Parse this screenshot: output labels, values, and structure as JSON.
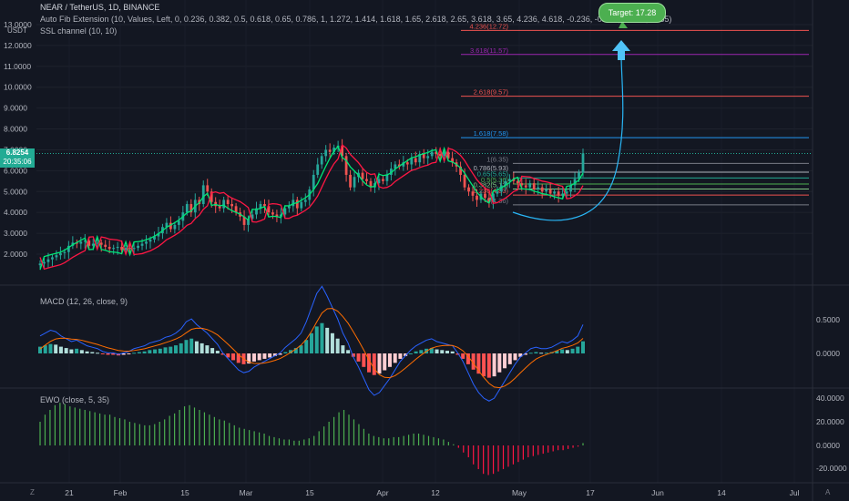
{
  "header": {
    "symbol_line": "NEAR / TetherUS, 1D, BINANCE",
    "fib_line": "Auto Fib Extension (10, Values, Left, 0, 0.236, 0.382, 0.5, 0.618, 0.65, 0.786, 1, 1.272, 1.414, 1.618, 1.65, 2.618, 2.65, 3.618, 3.65, 4.236, 4.618, -0.236, -0.382, -0.618, -0.65)",
    "ssl_line": "SSL channel (10, 10)",
    "currency": "USDT"
  },
  "price_tag": {
    "price": "6.8254",
    "countdown": "20:35:06"
  },
  "target": {
    "label": "Target: 17.28"
  },
  "macd": {
    "label": "MACD (12, 26, close, 9)",
    "ticks": [
      "0.5000",
      "0.0000"
    ]
  },
  "ewo": {
    "label": "EWO (close, 5, 35)",
    "ticks": [
      "40.0000",
      "20.0000",
      "0.0000",
      "-20.0000"
    ]
  },
  "corner_left": "Z",
  "corner_right": "A",
  "colors": {
    "bg": "#131722",
    "up": "#26a69a",
    "down": "#ef5350",
    "ssl_up": "#00e676",
    "ssl_down": "#ff1744",
    "target": "#4caf50"
  },
  "chart_data": {
    "type": "candlestick",
    "y_ticks": [
      "13.0000",
      "12.0000",
      "11.0000",
      "10.0000",
      "9.0000",
      "8.0000",
      "7.0000",
      "6.0000",
      "5.0000",
      "4.0000",
      "3.0000",
      "2.0000"
    ],
    "x_ticks": [
      "21",
      "Feb",
      "15",
      "Mar",
      "15",
      "Apr",
      "12",
      "May",
      "17",
      "Jun",
      "14",
      "Jul"
    ],
    "ylim": [
      1.2,
      13.6
    ],
    "fib_levels": [
      {
        "label": "4.236(12.72)",
        "value": 12.72,
        "color": "#ef5350"
      },
      {
        "label": "3.618(11.57)",
        "value": 11.57,
        "color": "#9c27b0"
      },
      {
        "label": "2.618(9.57)",
        "value": 9.57,
        "color": "#ef5350"
      },
      {
        "label": "1.618(7.58)",
        "value": 7.58,
        "color": "#2196f3"
      },
      {
        "label": "1(6.35)",
        "value": 6.35,
        "color": "#787b86"
      },
      {
        "label": "0.786(5.93)",
        "value": 5.93,
        "color": "#b2b5be"
      },
      {
        "label": "0.65(5.65)",
        "value": 5.65,
        "color": "#22ab94"
      },
      {
        "label": "0.5(5.36)",
        "value": 5.36,
        "color": "#4caf50"
      },
      {
        "label": "0.382(5.12)",
        "value": 5.12,
        "color": "#81c784"
      },
      {
        "label": "0.236(4.83)",
        "value": 4.83,
        "color": "#ef5350"
      },
      {
        "label": "0(4.36)",
        "value": 4.36,
        "color": "#787b86"
      }
    ],
    "close": [
      1.55,
      1.62,
      1.75,
      1.85,
      1.95,
      2.05,
      2.1,
      2.4,
      2.55,
      2.5,
      2.6,
      2.65,
      2.4,
      2.5,
      2.55,
      2.45,
      2.35,
      2.25,
      2.3,
      2.35,
      2.2,
      2.3,
      2.25,
      2.3,
      2.4,
      2.5,
      2.6,
      2.7,
      2.85,
      3.0,
      3.3,
      3.5,
      3.2,
      3.4,
      3.6,
      4.0,
      4.4,
      4.0,
      4.6,
      4.4,
      5.3,
      5.0,
      4.5,
      4.3,
      4.2,
      4.6,
      4.4,
      4.3,
      4.0,
      3.8,
      3.4,
      3.7,
      3.9,
      4.2,
      4.4,
      4.3,
      4.0,
      3.9,
      3.8,
      3.9,
      4.2,
      4.3,
      4.6,
      4.2,
      4.5,
      4.6,
      5.1,
      5.8,
      6.3,
      6.7,
      7.0,
      6.9,
      7.1,
      7.2,
      6.7,
      5.8,
      5.2,
      5.7,
      5.9,
      5.6,
      5.5,
      5.2,
      5.4,
      5.6,
      5.5,
      5.8,
      6.1,
      6.3,
      6.2,
      6.4,
      6.3,
      6.6,
      6.4,
      6.8,
      6.6,
      6.7,
      6.9,
      6.8,
      6.7,
      6.9,
      6.6,
      6.4,
      6.2,
      5.8,
      5.2,
      5.0,
      4.8,
      4.6,
      4.9,
      4.7,
      4.5,
      4.9,
      5.0,
      5.3,
      5.5,
      5.6,
      5.5,
      5.4,
      5.3,
      5.2,
      5.4,
      5.1,
      5.2,
      5.0,
      5.1,
      4.9,
      5.0,
      4.8,
      4.9,
      5.0,
      5.3,
      5.6,
      5.9,
      6.83
    ],
    "macd_hist": [
      0.1,
      0.12,
      0.14,
      0.13,
      0.1,
      0.08,
      0.06,
      0.07,
      0.05,
      0.03,
      0.02,
      0.01,
      -0.01,
      -0.02,
      -0.02,
      -0.03,
      -0.02,
      -0.01,
      0.01,
      0.02,
      0.03,
      0.05,
      0.06,
      0.07,
      0.09,
      0.1,
      0.12,
      0.15,
      0.2,
      0.22,
      0.18,
      0.15,
      0.12,
      0.08,
      0.04,
      -0.02,
      -0.06,
      -0.1,
      -0.14,
      -0.16,
      -0.15,
      -0.12,
      -0.1,
      -0.08,
      -0.06,
      -0.04,
      -0.02,
      0.02,
      0.05,
      0.08,
      0.12,
      0.2,
      0.3,
      0.4,
      0.45,
      0.38,
      0.3,
      0.22,
      0.12,
      0.05,
      -0.05,
      -0.12,
      -0.2,
      -0.28,
      -0.32,
      -0.3,
      -0.25,
      -0.2,
      -0.14,
      -0.08,
      -0.04,
      0.0,
      0.03,
      0.05,
      0.07,
      0.08,
      0.06,
      0.05,
      0.04,
      0.03,
      -0.02,
      -0.08,
      -0.16,
      -0.24,
      -0.3,
      -0.34,
      -0.36,
      -0.34,
      -0.28,
      -0.22,
      -0.16,
      -0.1,
      -0.05,
      -0.02,
      0.01,
      0.02,
      0.01,
      0.01,
      0.02,
      0.04,
      0.06,
      0.05,
      0.07,
      0.1,
      0.18
    ],
    "ewo_values": [
      20,
      26,
      30,
      34,
      36,
      35,
      33,
      32,
      31,
      30,
      29,
      28,
      27,
      26,
      26,
      24,
      23,
      22,
      20,
      19,
      18,
      17,
      17,
      18,
      20,
      22,
      25,
      27,
      30,
      33,
      34,
      32,
      30,
      28,
      26,
      24,
      22,
      21,
      19,
      17,
      15,
      14,
      13,
      12,
      11,
      10,
      8,
      7,
      6,
      5,
      5,
      4,
      4,
      5,
      6,
      8,
      12,
      16,
      20,
      24,
      28,
      30,
      26,
      22,
      18,
      14,
      10,
      8,
      7,
      6,
      6,
      7,
      7,
      8,
      9,
      10,
      10,
      9,
      8,
      7,
      6,
      5,
      3,
      1,
      -2,
      -6,
      -10,
      -16,
      -20,
      -24,
      -25,
      -24,
      -22,
      -20,
      -18,
      -16,
      -14,
      -12,
      -10,
      -9,
      -8,
      -7,
      -6,
      -5,
      -4,
      -4,
      -3,
      -2,
      -1,
      2
    ]
  }
}
